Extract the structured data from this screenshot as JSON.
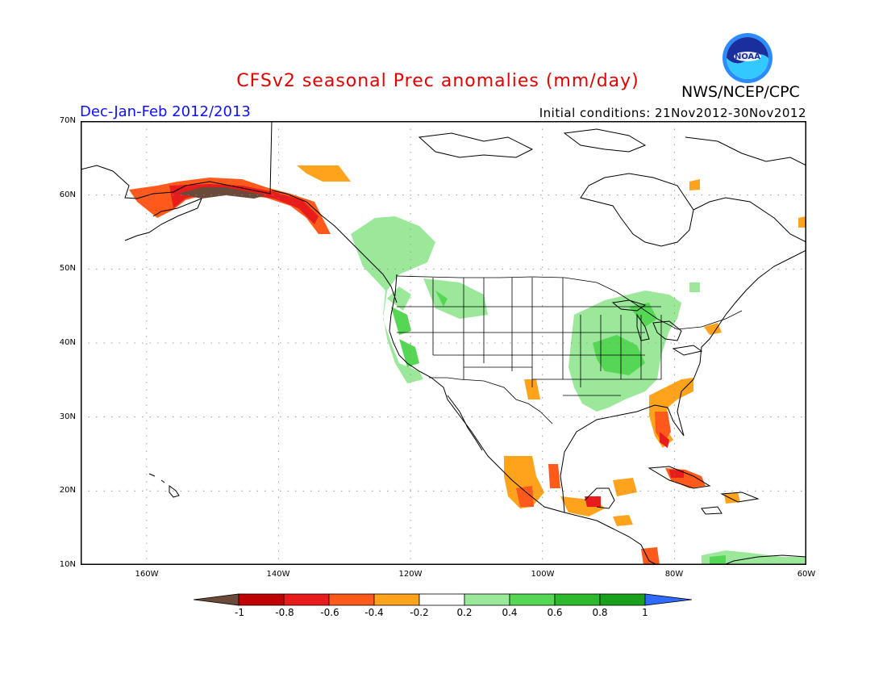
{
  "title": "CFSv2 seasonal Prec anomalies (mm/day)",
  "organization": "NWS/NCEP/CPC",
  "logo_text": "NOAA",
  "period": "Dec-Jan-Feb 2012/2013",
  "initial_conditions": "Initial conditions: 21Nov2012-30Nov2012",
  "lat_labels": [
    "70N",
    "60N",
    "50N",
    "40N",
    "30N",
    "20N",
    "10N"
  ],
  "lon_labels": [
    "160W",
    "140W",
    "120W",
    "100W",
    "80W",
    "60W"
  ],
  "colorbar": {
    "labels": [
      "-1",
      "-0.8",
      "-0.6",
      "-0.4",
      "-0.2",
      "0.2",
      "0.4",
      "0.6",
      "0.8",
      "1"
    ],
    "colors": [
      "#6b4a3a",
      "#c00000",
      "#e81c1c",
      "#ff5a1c",
      "#ffa31c",
      "#ffffff",
      "#9be89b",
      "#55d655",
      "#2db82d",
      "#1aa01a",
      "#2f6bff"
    ]
  },
  "map_extent": {
    "lon": [
      -170,
      -60
    ],
    "lat": [
      10,
      70
    ]
  }
}
